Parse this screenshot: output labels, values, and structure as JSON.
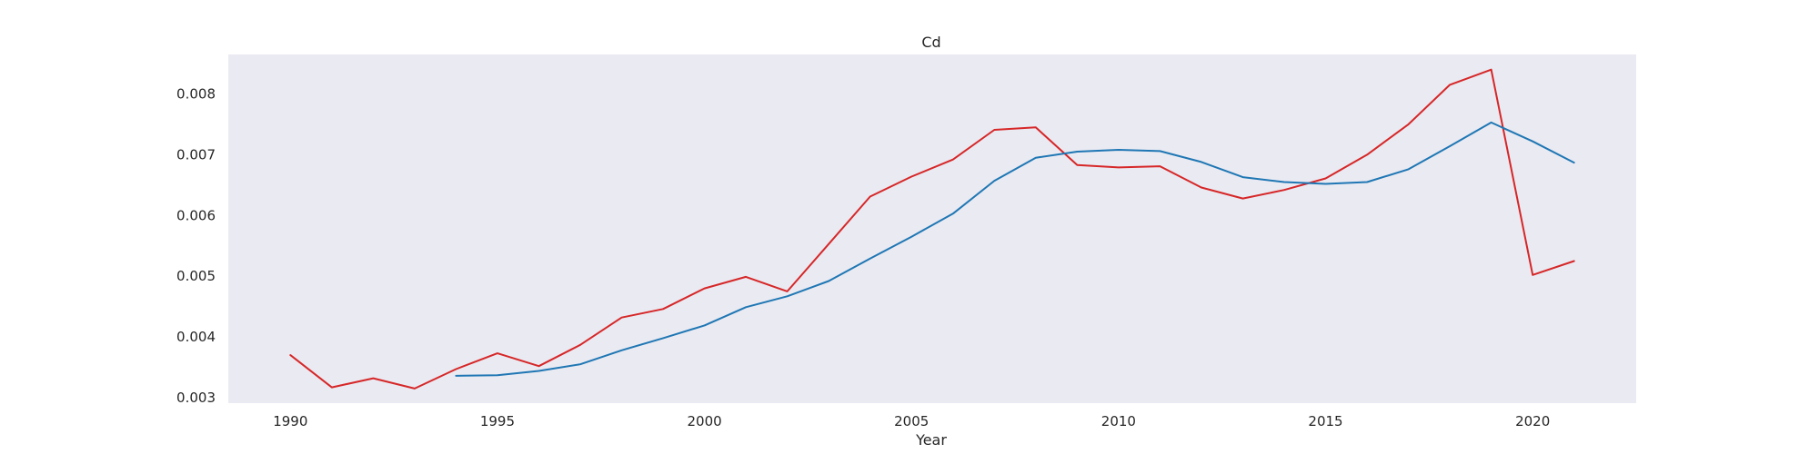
{
  "chart_data": {
    "type": "line",
    "title": "Cd",
    "xlabel": "Year",
    "ylabel": "",
    "xlim": [
      1988.5,
      2022.5
    ],
    "ylim": [
      0.00291,
      0.00865
    ],
    "xticks": [
      1990,
      1995,
      2000,
      2005,
      2010,
      2015,
      2020
    ],
    "yticks": [
      0.003,
      0.004,
      0.005,
      0.006,
      0.007,
      0.008
    ],
    "ytick_labels": [
      "0.003",
      "0.004",
      "0.005",
      "0.006",
      "0.007",
      "0.008"
    ],
    "grid": false,
    "background": "#eaeaf2",
    "series": [
      {
        "color": "#d62728",
        "x": [
          1990,
          1991,
          1992,
          1993,
          1994,
          1995,
          1996,
          1997,
          1998,
          1999,
          2000,
          2001,
          2002,
          2003,
          2004,
          2005,
          2006,
          2007,
          2008,
          2009,
          2010,
          2011,
          2012,
          2013,
          2014,
          2015,
          2016,
          2017,
          2018,
          2019,
          2020,
          2021
        ],
        "values": [
          0.0037,
          0.00317,
          0.00332,
          0.00315,
          0.00347,
          0.00373,
          0.00352,
          0.00387,
          0.00432,
          0.00446,
          0.0048,
          0.00499,
          0.00475,
          0.00553,
          0.00631,
          0.00664,
          0.00692,
          0.00741,
          0.00745,
          0.00683,
          0.00679,
          0.00681,
          0.00646,
          0.00628,
          0.00642,
          0.00661,
          0.007,
          0.0075,
          0.00815,
          0.0084,
          0.00502,
          0.00525
        ]
      },
      {
        "color": "#1f77b4",
        "x": [
          1994,
          1995,
          1996,
          1997,
          1998,
          1999,
          2000,
          2001,
          2002,
          2003,
          2004,
          2005,
          2006,
          2007,
          2008,
          2009,
          2010,
          2011,
          2012,
          2013,
          2014,
          2015,
          2016,
          2017,
          2018,
          2019,
          2020,
          2021
        ],
        "values": [
          0.00336,
          0.00337,
          0.00344,
          0.00355,
          0.00378,
          0.00398,
          0.00419,
          0.00449,
          0.00467,
          0.00492,
          0.00529,
          0.00565,
          0.00603,
          0.00657,
          0.00695,
          0.00705,
          0.00708,
          0.00706,
          0.00688,
          0.00663,
          0.00655,
          0.00652,
          0.00655,
          0.00676,
          0.00714,
          0.00753,
          0.00722,
          0.00687
        ]
      }
    ]
  }
}
